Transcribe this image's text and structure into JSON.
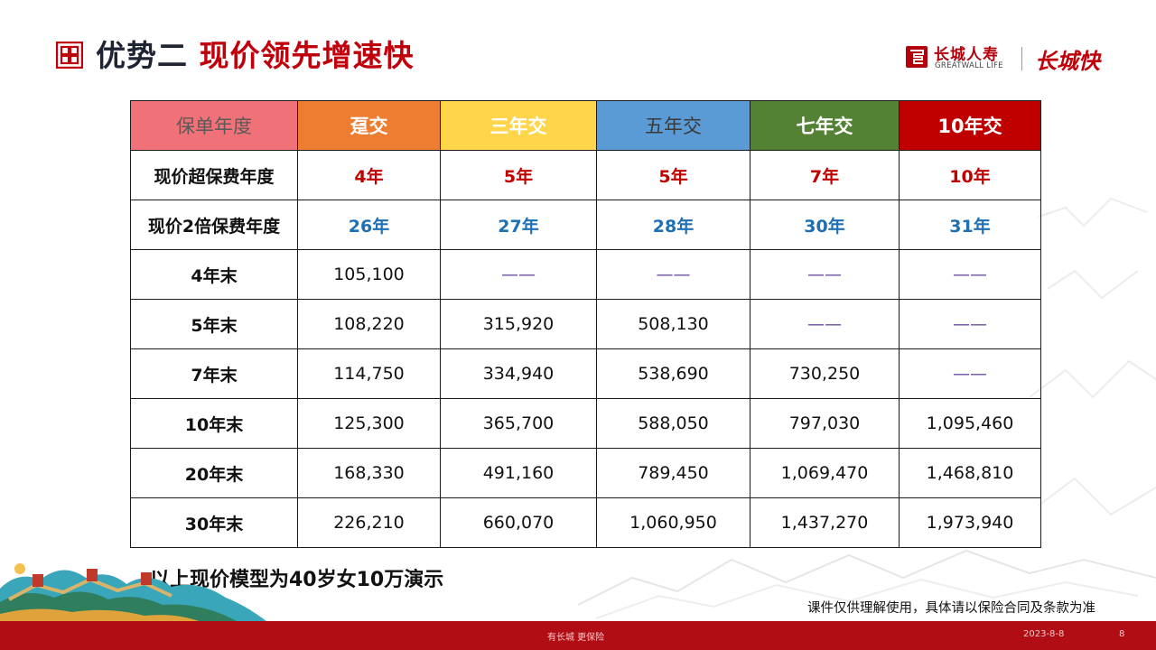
{
  "header": {
    "title_part1": "优势二",
    "title_part2": "现价领先增速快"
  },
  "brand": {
    "name_cn": "长城人寿",
    "name_en": "GREATWALL LIFE",
    "script": "长城快"
  },
  "table": {
    "headers": [
      "保单年度",
      "趸交",
      "三年交",
      "五年交",
      "七年交",
      "10年交"
    ],
    "rows": [
      {
        "label": "现价超保费年度",
        "style": "red",
        "values": [
          "4年",
          "5年",
          "5年",
          "7年",
          "10年"
        ]
      },
      {
        "label": "现价2倍保费年度",
        "style": "blue",
        "values": [
          "26年",
          "27年",
          "28年",
          "30年",
          "31年"
        ]
      },
      {
        "label": "4年末",
        "style": "num",
        "values": [
          "105,100",
          "——",
          "——",
          "——",
          "——"
        ]
      },
      {
        "label": "5年末",
        "style": "num",
        "values": [
          "108,220",
          "315,920",
          "508,130",
          "——",
          "——"
        ]
      },
      {
        "label": "7年末",
        "style": "num",
        "values": [
          "114,750",
          "334,940",
          "538,690",
          "730,250",
          "——"
        ]
      },
      {
        "label": "10年末",
        "style": "num",
        "values": [
          "125,300",
          "365,700",
          "588,050",
          "797,030",
          "1,095,460"
        ]
      },
      {
        "label": "20年末",
        "style": "num",
        "values": [
          "168,330",
          "491,160",
          "789,450",
          "1,069,470",
          "1,468,810"
        ]
      },
      {
        "label": "30年末",
        "style": "num",
        "values": [
          "226,210",
          "660,070",
          "1,060,950",
          "1,437,270",
          "1,973,940"
        ]
      }
    ]
  },
  "notes": {
    "main": "以上现价模型为40岁女10万演示",
    "side": "课件仅供理解使用，具体请以保险合同及条款为准"
  },
  "footer": {
    "slogan": "有长城  更保险",
    "date": "2023-8-8",
    "page": "8"
  },
  "colors": {
    "accent_red": "#c0000b",
    "footer_red": "#b00d14",
    "header_pink": "#f07278",
    "header_orange": "#ed7d31",
    "header_yellow": "#ffd54a",
    "header_blue": "#5b9bd5",
    "header_green": "#548235",
    "header_darkred": "#c00000"
  }
}
